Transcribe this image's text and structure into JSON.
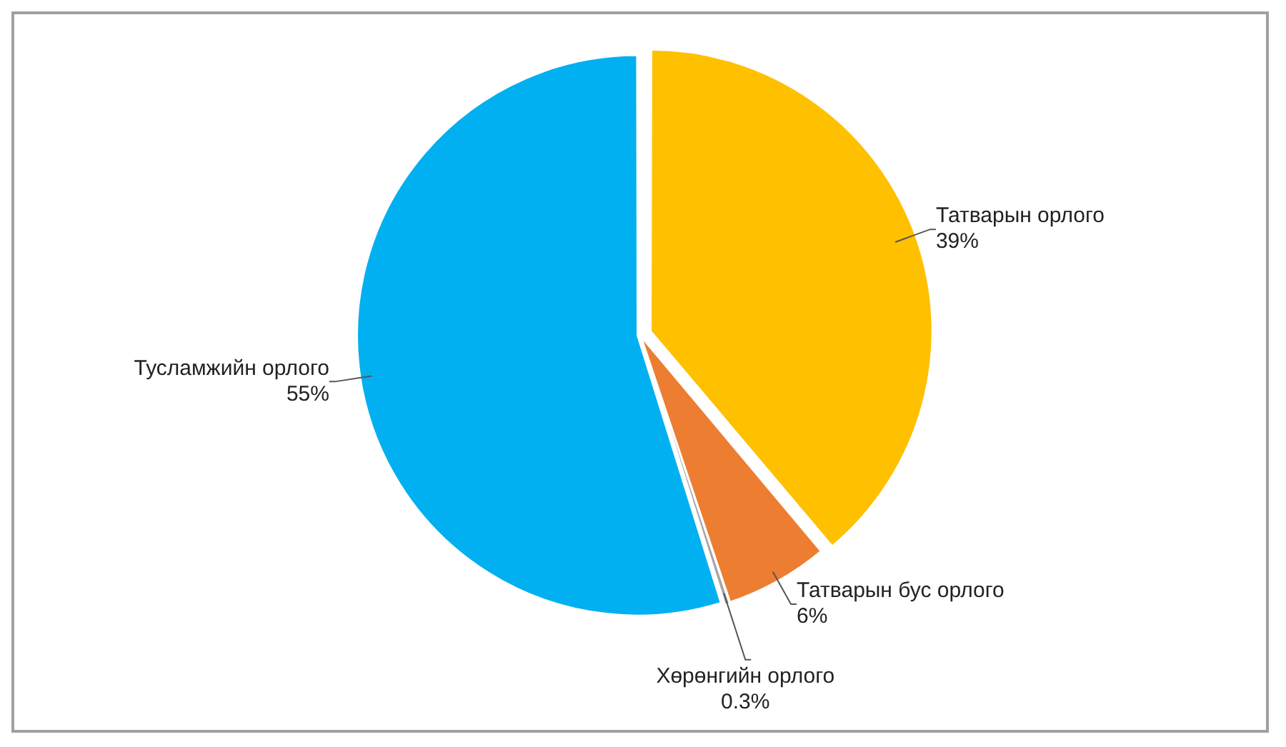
{
  "chart_data": {
    "type": "pie",
    "categories": [
      "Татварын орлого",
      "Татварын бус орлого",
      "Хөрөнгийн орлого",
      "Тусламжийн орлого"
    ],
    "values": [
      39,
      6,
      0.3,
      55
    ],
    "colors": [
      "#ffc000",
      "#ed7d31",
      "#a5a5a5",
      "#00b0f0"
    ],
    "value_labels": [
      "39%",
      "6%",
      "0.3%",
      "55%"
    ],
    "legend": false
  }
}
